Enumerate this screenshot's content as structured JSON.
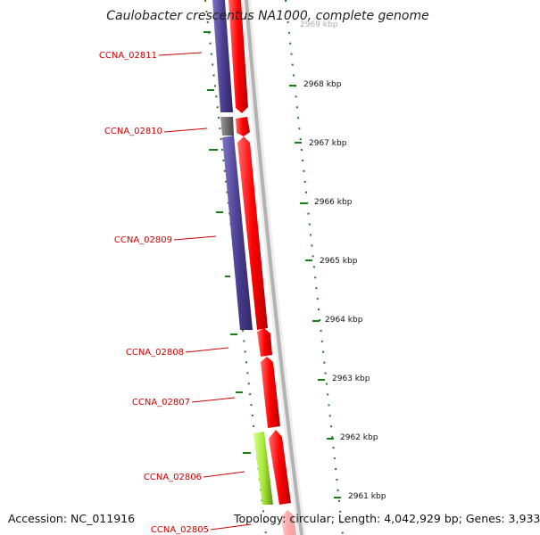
{
  "title": "Caulobacter crescentus NA1000, complete genome",
  "footer": {
    "accession": "Accession: NC_011916",
    "summary": "Topology: circular; Length: 4,042,929 bp; Genes: 3,933"
  },
  "colors": {
    "forward_gene": "#ff0000",
    "reverse_gene": "#4b3f91",
    "reverse_gene_gray": "#666666",
    "green_gene": "#a8e83a",
    "label": "#cc0000",
    "backbone": "#888888",
    "gc_ticks": "#1a7f1a"
  },
  "kbp_ticks": [
    "2969 kbp",
    "2968 kbp",
    "2967 kbp",
    "2966 kbp",
    "2965 kbp",
    "2964 kbp",
    "2963 kbp",
    "2962 kbp",
    "2961 kbp"
  ],
  "genes": [
    {
      "label": "CCNA_02811"
    },
    {
      "label": "CCNA_02810"
    },
    {
      "label": "CCNA_02809"
    },
    {
      "label": "CCNA_02808"
    },
    {
      "label": "CCNA_02807"
    },
    {
      "label": "CCNA_02806"
    },
    {
      "label": "CCNA_02805"
    }
  ]
}
